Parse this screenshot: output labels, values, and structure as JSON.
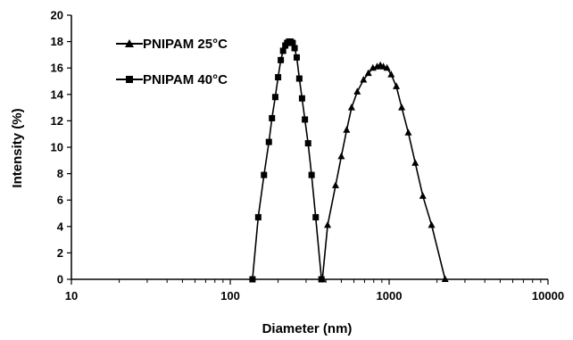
{
  "chart_data": {
    "type": "line",
    "xlabel": "Diameter (nm)",
    "ylabel": "Intensity (%)",
    "x_scale": "log",
    "xlim": [
      10,
      10000
    ],
    "ylim": [
      0,
      20
    ],
    "x_ticks": [
      "10",
      "100",
      "1000",
      "10000"
    ],
    "y_ticks": [
      "0",
      "2",
      "4",
      "6",
      "8",
      "10",
      "12",
      "14",
      "16",
      "18",
      "20"
    ],
    "grid": false,
    "legend_position": "top-left",
    "series": [
      {
        "name": "PNIPAM 25°C",
        "marker": "triangle",
        "x": [
          380,
          410,
          460,
          500,
          540,
          580,
          630,
          690,
          740,
          790,
          840,
          880,
          920,
          970,
          1030,
          1110,
          1200,
          1320,
          1460,
          1630,
          1850,
          2250
        ],
        "y": [
          0,
          4.1,
          7.1,
          9.3,
          11.3,
          13.0,
          14.2,
          15.1,
          15.6,
          16.0,
          16.1,
          16.2,
          16.1,
          16.0,
          15.5,
          14.6,
          13.0,
          11.1,
          8.8,
          6.3,
          4.1,
          0
        ]
      },
      {
        "name": "PNIPAM 40°C",
        "marker": "square",
        "x": [
          138,
          150,
          163,
          175,
          183,
          192,
          200,
          208,
          215,
          222,
          228,
          234,
          240,
          247,
          254,
          262,
          272,
          283,
          295,
          309,
          325,
          345,
          375
        ],
        "y": [
          0,
          4.7,
          7.9,
          10.4,
          12.2,
          13.8,
          15.3,
          16.6,
          17.3,
          17.7,
          17.9,
          18.0,
          18.0,
          17.9,
          17.5,
          16.8,
          15.2,
          13.7,
          12.1,
          10.3,
          7.9,
          4.7,
          0
        ]
      }
    ]
  }
}
